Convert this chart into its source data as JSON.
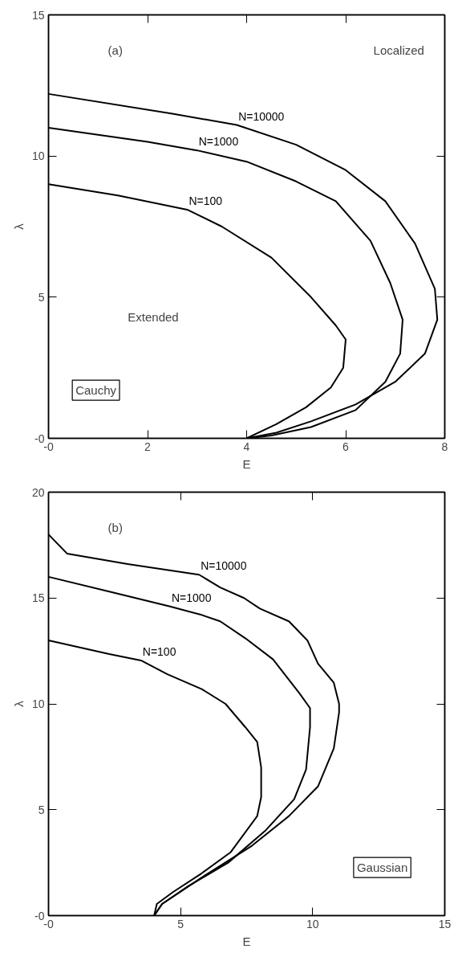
{
  "chart_data": [
    {
      "type": "line",
      "subtitle": "Cauchy",
      "xlabel": "E",
      "ylabel": "λ",
      "xlim": [
        0,
        8
      ],
      "ylim": [
        0,
        15
      ],
      "xticks": [
        {
          "value": 0,
          "label": "-0"
        },
        2,
        4,
        6,
        8
      ],
      "yticks": [
        {
          "value": 0,
          "label": "-0"
        },
        5,
        10,
        15
      ],
      "grid": false,
      "legend": false,
      "marker": "none",
      "line_style": "solid",
      "annotations": [
        "(a)",
        "Localized",
        "Extended"
      ],
      "series": [
        {
          "name": "N=100",
          "color": "#000000",
          "x": [
            0,
            1.4,
            2.8,
            3.5,
            4.5,
            5.3,
            5.8,
            6.0,
            5.95,
            5.7,
            5.2,
            4.6,
            4.0
          ],
          "values": [
            9,
            8.6,
            8.1,
            7.5,
            6.4,
            5,
            4,
            3.5,
            2.5,
            1.8,
            1.1,
            0.5,
            0
          ]
        },
        {
          "name": "N=1000",
          "color": "#000000",
          "x": [
            0,
            2,
            3,
            4,
            5,
            5.8,
            6.5,
            6.9,
            7.15,
            7.1,
            6.8,
            6.2,
            5.3,
            4.5,
            4.0
          ],
          "values": [
            11,
            10.5,
            10.2,
            9.8,
            9.1,
            8.4,
            7,
            5.5,
            4.2,
            3,
            2,
            1,
            0.4,
            0.1,
            0
          ]
        },
        {
          "name": "N=10000",
          "color": "#000000",
          "x": [
            0,
            2.5,
            3.8,
            5,
            6,
            6.8,
            7.4,
            7.8,
            7.85,
            7.6,
            7,
            6.2,
            5.3,
            4.6,
            4.0
          ],
          "values": [
            12.2,
            11.5,
            11.1,
            10.4,
            9.5,
            8.4,
            6.9,
            5.3,
            4.2,
            3,
            2,
            1.2,
            0.6,
            0.2,
            0
          ]
        }
      ]
    },
    {
      "type": "line",
      "subtitle": "Gaussian",
      "xlabel": "E",
      "ylabel": "λ",
      "xlim": [
        0,
        15
      ],
      "ylim": [
        0,
        20
      ],
      "xticks": [
        {
          "value": 0,
          "label": "-0"
        },
        5,
        10,
        15
      ],
      "yticks": [
        {
          "value": 0,
          "label": "-0"
        },
        5,
        10,
        15,
        20
      ],
      "grid": false,
      "legend": false,
      "marker": "none",
      "line_style": "solid",
      "annotations": [
        "(b)"
      ],
      "series": [
        {
          "name": "N=100",
          "color": "#000000",
          "x": [
            0,
            2.3,
            3.5,
            4.5,
            5.8,
            6.7,
            7.45,
            7.9,
            8.05,
            8.05,
            7.9,
            6.9,
            5.8,
            4.7,
            4.1,
            4.0
          ],
          "values": [
            13,
            12.35,
            12.05,
            11.4,
            10.7,
            10,
            8.9,
            8.2,
            7,
            5.6,
            4.7,
            3,
            2,
            1.1,
            0.55,
            0
          ]
        },
        {
          "name": "N=1000",
          "color": "#000000",
          "x": [
            0,
            2.3,
            4.6,
            5.8,
            6.5,
            7.45,
            8.5,
            9.5,
            9.9,
            9.9,
            9.75,
            9.3,
            8.2,
            6.8,
            5.3,
            4.3,
            4.0
          ],
          "values": [
            16,
            15.3,
            14.6,
            14.2,
            13.9,
            13.1,
            12.1,
            10.5,
            9.8,
            8.9,
            6.9,
            5.5,
            4,
            2.5,
            1.4,
            0.55,
            0
          ]
        },
        {
          "name": "N=10000",
          "color": "#000000",
          "x": [
            0,
            0.7,
            3,
            5.7,
            6.5,
            7.4,
            8,
            9.1,
            9.8,
            10.2,
            10.8,
            11,
            11,
            10.8,
            10.2,
            9.1,
            7.7,
            5.8,
            4.3,
            4.0
          ],
          "values": [
            18,
            17.1,
            16.6,
            16.1,
            15.5,
            15,
            14.5,
            13.9,
            13,
            11.9,
            11,
            10,
            9.6,
            7.9,
            6.1,
            4.7,
            3.3,
            1.8,
            0.55,
            0
          ]
        }
      ]
    }
  ]
}
